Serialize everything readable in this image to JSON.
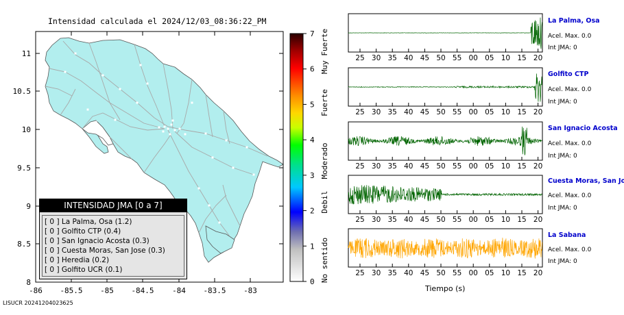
{
  "title": "Intensidad calculada el 2024/12/03_08:36:22_PM",
  "map": {
    "x_ticks": [
      "-86",
      "-85.5",
      "-85",
      "-84.5",
      "-84",
      "-83.5",
      "-83"
    ],
    "y_ticks": [
      "11",
      "10.5",
      "10",
      "9.5",
      "9",
      "8.5",
      "8"
    ],
    "land_color": "#b2eeee",
    "road_color": "#a8a8a8"
  },
  "colorbar": {
    "ticks": [
      "0",
      "1",
      "2",
      "3",
      "4",
      "5",
      "6",
      "7"
    ],
    "labels": [
      "No sentido",
      "Debil",
      "Moderado",
      "Fuerte",
      "Muy Fuerte"
    ]
  },
  "legend": {
    "header": "INTENSIDAD JMA [0 a 7]",
    "items": [
      {
        "level": "[ 0 ]",
        "name": "La Palma, Osa (1.2)"
      },
      {
        "level": "[ 0 ]",
        "name": "Golfito CTP (0.4)"
      },
      {
        "level": "[ 0 ]",
        "name": "San Ignacio Acosta (0.3)"
      },
      {
        "level": "[ 0 ]",
        "name": "Cuesta Moras, San Jose (0.3)"
      },
      {
        "level": "[ 0 ]",
        "name": "Heredia (0.2)"
      },
      {
        "level": "[ 0 ]",
        "name": "Golfito UCR (0.1)"
      }
    ]
  },
  "waveforms": [
    {
      "station": "La Palma, Osa",
      "accel": "Acel. Max. 0.0",
      "int": "Int JMA: 0",
      "color": "#006400"
    },
    {
      "station": "Golfito CTP",
      "accel": "Acel. Max. 0.0",
      "int": "Int JMA: 0",
      "color": "#006400"
    },
    {
      "station": "San Ignacio Acosta",
      "accel": "Acel. Max. 0.0",
      "int": "Int JMA: 0",
      "color": "#006400"
    },
    {
      "station": "Cuesta Moras, San Jose",
      "accel": "Acel. Max. 0.0",
      "int": "Int JMA: 0",
      "color": "#006400"
    },
    {
      "station": "La Sabana",
      "accel": "Acel. Max. 0.0",
      "int": "Int JMA: 0",
      "color": "#ffa500"
    }
  ],
  "time_ticks": [
    "25",
    "30",
    "35",
    "40",
    "45",
    "50",
    "55",
    "00",
    "05",
    "10",
    "15",
    "20"
  ],
  "time_axis_label": "Tiempo (s)",
  "footer": "LISUCR 20241204023625"
}
